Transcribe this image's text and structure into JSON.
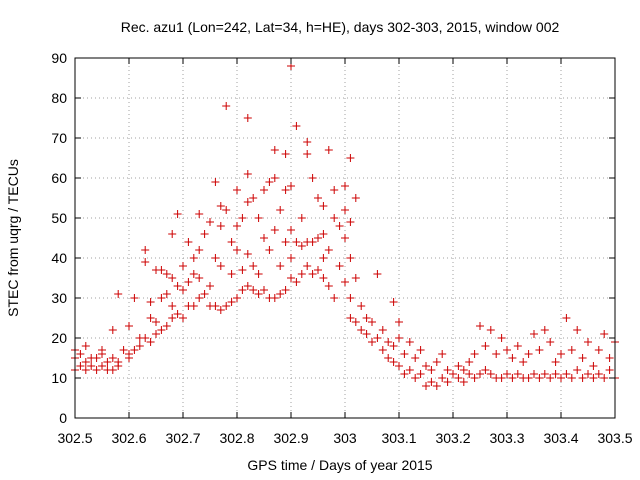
{
  "chart_data": {
    "type": "scatter",
    "title": "Rec. azu1 (Lon=242, Lat=34, h=HE), days 302-303, 2015, window 002",
    "xlabel": "GPS time / Days of year 2015",
    "ylabel": "STEC from uqrg / TECUs",
    "xlim": [
      302.5,
      303.5
    ],
    "ylim": [
      0,
      90
    ],
    "grid": true,
    "x_ticks": [
      302.5,
      302.6,
      302.7,
      302.8,
      302.9,
      303,
      303.1,
      303.2,
      303.3,
      303.4,
      303.5
    ],
    "x_tick_labels": [
      "302.5",
      "302.6",
      "302.7",
      "302.8",
      "302.9",
      "303",
      "303.1",
      "303.2",
      "303.3",
      "303.4",
      "303.5"
    ],
    "y_ticks": [
      0,
      10,
      20,
      30,
      40,
      50,
      60,
      70,
      80,
      90
    ],
    "y_tick_labels": [
      "0",
      "10",
      "20",
      "30",
      "40",
      "50",
      "60",
      "70",
      "80",
      "90"
    ],
    "marker_color": "#cc0000",
    "marker": "plus",
    "series": [
      {
        "points": [
          [
            302.5,
            12
          ],
          [
            302.5,
            15
          ],
          [
            302.5,
            17
          ],
          [
            302.51,
            13
          ],
          [
            302.51,
            16
          ],
          [
            302.52,
            12
          ],
          [
            302.52,
            14
          ],
          [
            302.52,
            18
          ],
          [
            302.53,
            13
          ],
          [
            302.53,
            15
          ],
          [
            302.54,
            12
          ],
          [
            302.54,
            15
          ],
          [
            302.55,
            13
          ],
          [
            302.55,
            16
          ],
          [
            302.55,
            17
          ],
          [
            302.56,
            12
          ],
          [
            302.56,
            14
          ],
          [
            302.57,
            12
          ],
          [
            302.57,
            15
          ],
          [
            302.57,
            22
          ],
          [
            302.58,
            13
          ],
          [
            302.58,
            14
          ],
          [
            302.58,
            31
          ],
          [
            302.59,
            17
          ],
          [
            302.6,
            15
          ],
          [
            302.6,
            16
          ],
          [
            302.6,
            23
          ],
          [
            302.61,
            17
          ],
          [
            302.61,
            30
          ],
          [
            302.62,
            18
          ],
          [
            302.62,
            20
          ],
          [
            302.63,
            20
          ],
          [
            302.63,
            39
          ],
          [
            302.63,
            42
          ],
          [
            302.64,
            19
          ],
          [
            302.64,
            25
          ],
          [
            302.64,
            29
          ],
          [
            302.65,
            21
          ],
          [
            302.65,
            24
          ],
          [
            302.65,
            37
          ],
          [
            302.66,
            22
          ],
          [
            302.66,
            30
          ],
          [
            302.66,
            37
          ],
          [
            302.67,
            23
          ],
          [
            302.67,
            31
          ],
          [
            302.67,
            36
          ],
          [
            302.68,
            25
          ],
          [
            302.68,
            28
          ],
          [
            302.68,
            35
          ],
          [
            302.68,
            46
          ],
          [
            302.69,
            26
          ],
          [
            302.69,
            33
          ],
          [
            302.69,
            51
          ],
          [
            302.7,
            25
          ],
          [
            302.7,
            32
          ],
          [
            302.7,
            38
          ],
          [
            302.71,
            28
          ],
          [
            302.71,
            34
          ],
          [
            302.71,
            44
          ],
          [
            302.72,
            28
          ],
          [
            302.72,
            36
          ],
          [
            302.72,
            40
          ],
          [
            302.73,
            30
          ],
          [
            302.73,
            35
          ],
          [
            302.73,
            42
          ],
          [
            302.73,
            51
          ],
          [
            302.74,
            31
          ],
          [
            302.74,
            46
          ],
          [
            302.75,
            28
          ],
          [
            302.75,
            33
          ],
          [
            302.75,
            49
          ],
          [
            302.76,
            28
          ],
          [
            302.76,
            40
          ],
          [
            302.76,
            59
          ],
          [
            302.77,
            27
          ],
          [
            302.77,
            38
          ],
          [
            302.77,
            48
          ],
          [
            302.77,
            53
          ],
          [
            302.78,
            28
          ],
          [
            302.78,
            52
          ],
          [
            302.78,
            78
          ],
          [
            302.79,
            29
          ],
          [
            302.79,
            36
          ],
          [
            302.79,
            44
          ],
          [
            302.8,
            30
          ],
          [
            302.8,
            42
          ],
          [
            302.8,
            48
          ],
          [
            302.8,
            57
          ],
          [
            302.81,
            32
          ],
          [
            302.81,
            37
          ],
          [
            302.81,
            50
          ],
          [
            302.82,
            33
          ],
          [
            302.82,
            41
          ],
          [
            302.82,
            54
          ],
          [
            302.82,
            61
          ],
          [
            302.82,
            75
          ],
          [
            302.83,
            32
          ],
          [
            302.83,
            38
          ],
          [
            302.83,
            55
          ],
          [
            302.84,
            31
          ],
          [
            302.84,
            36
          ],
          [
            302.84,
            50
          ],
          [
            302.85,
            32
          ],
          [
            302.85,
            45
          ],
          [
            302.85,
            57
          ],
          [
            302.86,
            30
          ],
          [
            302.86,
            42
          ],
          [
            302.86,
            59
          ],
          [
            302.87,
            30
          ],
          [
            302.87,
            47
          ],
          [
            302.87,
            60
          ],
          [
            302.87,
            67
          ],
          [
            302.88,
            31
          ],
          [
            302.88,
            38
          ],
          [
            302.88,
            52
          ],
          [
            302.89,
            32
          ],
          [
            302.89,
            44
          ],
          [
            302.89,
            57
          ],
          [
            302.89,
            66
          ],
          [
            302.9,
            35
          ],
          [
            302.9,
            40
          ],
          [
            302.9,
            47
          ],
          [
            302.9,
            58
          ],
          [
            302.9,
            88
          ],
          [
            302.91,
            34
          ],
          [
            302.91,
            44
          ],
          [
            302.91,
            73
          ],
          [
            302.92,
            36
          ],
          [
            302.92,
            43
          ],
          [
            302.92,
            50
          ],
          [
            302.93,
            38
          ],
          [
            302.93,
            44
          ],
          [
            302.93,
            66
          ],
          [
            302.93,
            69
          ],
          [
            302.94,
            36
          ],
          [
            302.94,
            44
          ],
          [
            302.94,
            60
          ],
          [
            302.95,
            37
          ],
          [
            302.95,
            45
          ],
          [
            302.95,
            55
          ],
          [
            302.96,
            35
          ],
          [
            302.96,
            40
          ],
          [
            302.96,
            46
          ],
          [
            302.96,
            53
          ],
          [
            302.97,
            33
          ],
          [
            302.97,
            42
          ],
          [
            302.97,
            67
          ],
          [
            302.98,
            30
          ],
          [
            302.98,
            50
          ],
          [
            302.98,
            57
          ],
          [
            302.99,
            38
          ],
          [
            302.99,
            48
          ],
          [
            303,
            34
          ],
          [
            303,
            45
          ],
          [
            303,
            52
          ],
          [
            303,
            58
          ],
          [
            303.01,
            25
          ],
          [
            303.01,
            30
          ],
          [
            303.01,
            40
          ],
          [
            303.01,
            49
          ],
          [
            303.01,
            65
          ],
          [
            303.02,
            24
          ],
          [
            303.02,
            35
          ],
          [
            303.02,
            55
          ],
          [
            303.03,
            22
          ],
          [
            303.03,
            28
          ],
          [
            303.04,
            21
          ],
          [
            303.04,
            25
          ],
          [
            303.05,
            19
          ],
          [
            303.05,
            24
          ],
          [
            303.06,
            20
          ],
          [
            303.06,
            36
          ],
          [
            303.07,
            17
          ],
          [
            303.07,
            22
          ],
          [
            303.08,
            15
          ],
          [
            303.08,
            19
          ],
          [
            303.09,
            14
          ],
          [
            303.09,
            18
          ],
          [
            303.09,
            29
          ],
          [
            303.1,
            13
          ],
          [
            303.1,
            20
          ],
          [
            303.1,
            24
          ],
          [
            303.11,
            11
          ],
          [
            303.11,
            16
          ],
          [
            303.12,
            12
          ],
          [
            303.12,
            19
          ],
          [
            303.13,
            10
          ],
          [
            303.13,
            15
          ],
          [
            303.14,
            11
          ],
          [
            303.14,
            17
          ],
          [
            303.15,
            8
          ],
          [
            303.15,
            13
          ],
          [
            303.16,
            9
          ],
          [
            303.16,
            12
          ],
          [
            303.17,
            8
          ],
          [
            303.17,
            14
          ],
          [
            303.18,
            10
          ],
          [
            303.18,
            16
          ],
          [
            303.19,
            9
          ],
          [
            303.19,
            12
          ],
          [
            303.2,
            11
          ],
          [
            303.21,
            10
          ],
          [
            303.21,
            13
          ],
          [
            303.22,
            9
          ],
          [
            303.22,
            12
          ],
          [
            303.23,
            11
          ],
          [
            303.23,
            14
          ],
          [
            303.24,
            10
          ],
          [
            303.24,
            16
          ],
          [
            303.25,
            11
          ],
          [
            303.25,
            23
          ],
          [
            303.26,
            12
          ],
          [
            303.26,
            18
          ],
          [
            303.27,
            11
          ],
          [
            303.27,
            22
          ],
          [
            303.28,
            10
          ],
          [
            303.28,
            16
          ],
          [
            303.29,
            10
          ],
          [
            303.29,
            20
          ],
          [
            303.3,
            11
          ],
          [
            303.3,
            17
          ],
          [
            303.31,
            10
          ],
          [
            303.31,
            15
          ],
          [
            303.32,
            11
          ],
          [
            303.32,
            18
          ],
          [
            303.33,
            10
          ],
          [
            303.33,
            14
          ],
          [
            303.34,
            10
          ],
          [
            303.34,
            16
          ],
          [
            303.35,
            11
          ],
          [
            303.35,
            21
          ],
          [
            303.36,
            10
          ],
          [
            303.36,
            17
          ],
          [
            303.37,
            11
          ],
          [
            303.37,
            22
          ],
          [
            303.38,
            10
          ],
          [
            303.38,
            19
          ],
          [
            303.39,
            11
          ],
          [
            303.39,
            14
          ],
          [
            303.4,
            10
          ],
          [
            303.4,
            16
          ],
          [
            303.41,
            11
          ],
          [
            303.41,
            25
          ],
          [
            303.42,
            10
          ],
          [
            303.42,
            17
          ],
          [
            303.43,
            12
          ],
          [
            303.43,
            22
          ],
          [
            303.44,
            10
          ],
          [
            303.44,
            15
          ],
          [
            303.45,
            11
          ],
          [
            303.45,
            19
          ],
          [
            303.46,
            10
          ],
          [
            303.46,
            13
          ],
          [
            303.47,
            11
          ],
          [
            303.47,
            17
          ],
          [
            303.48,
            10
          ],
          [
            303.48,
            21
          ],
          [
            303.49,
            12
          ],
          [
            303.49,
            15
          ],
          [
            303.5,
            10
          ],
          [
            303.5,
            19
          ]
        ]
      }
    ]
  }
}
